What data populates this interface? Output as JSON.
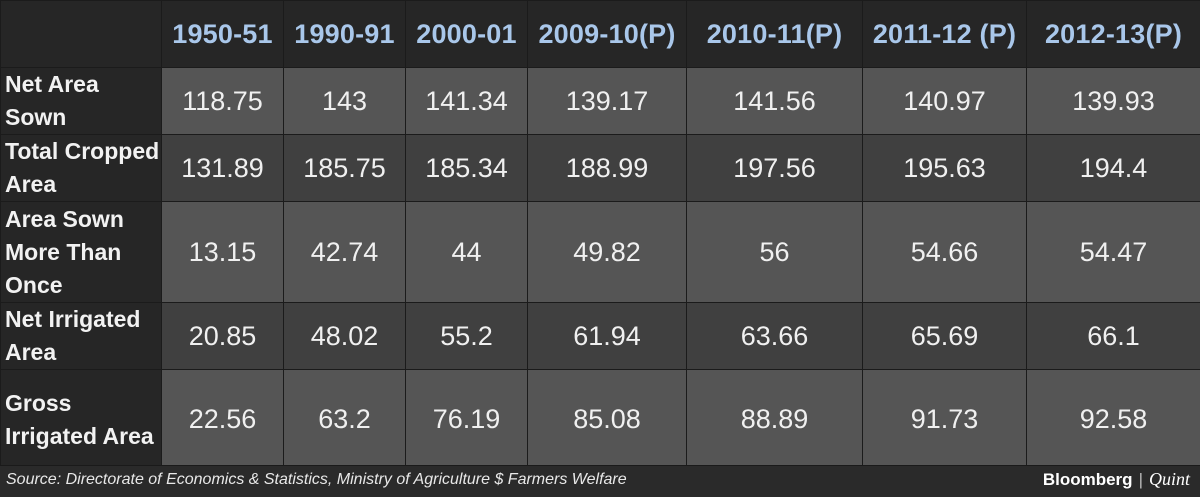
{
  "table": {
    "columns": [
      "1950-51",
      "1990-91",
      "2000-01",
      "2009-10(P)",
      "2010-11(P)",
      "2011-12 (P)",
      "2012-13(P)"
    ],
    "rows": [
      {
        "label": "Net Area Sown",
        "values": [
          "118.75",
          "143",
          "141.34",
          "139.17",
          "141.56",
          "140.97",
          "139.93"
        ]
      },
      {
        "label": "Total Cropped Area",
        "values": [
          "131.89",
          "185.75",
          "185.34",
          "188.99",
          "197.56",
          "195.63",
          "194.4"
        ]
      },
      {
        "label": "Area Sown More Than Once",
        "values": [
          "13.15",
          "42.74",
          "44",
          "49.82",
          "56",
          "54.66",
          "54.47"
        ]
      },
      {
        "label": "Net Irrigated Area",
        "values": [
          "20.85",
          "48.02",
          "55.2",
          "61.94",
          "63.66",
          "65.69",
          "66.1"
        ]
      },
      {
        "label": "Gross Irrigated Area",
        "values": [
          "22.56",
          "63.2",
          "76.19",
          "85.08",
          "88.89",
          "91.73",
          "92.58"
        ]
      }
    ]
  },
  "footer": {
    "source": "Source: Directorate of Economics & Statistics, Ministry of Agriculture $ Farmers Welfare",
    "brand_primary": "Bloomberg",
    "brand_separator": "|",
    "brand_secondary": "Quint"
  },
  "colors": {
    "header_text": "#a9c7ea",
    "cell_shade_a": "#555555",
    "cell_shade_b": "#404040",
    "background": "#2a2a2a"
  }
}
